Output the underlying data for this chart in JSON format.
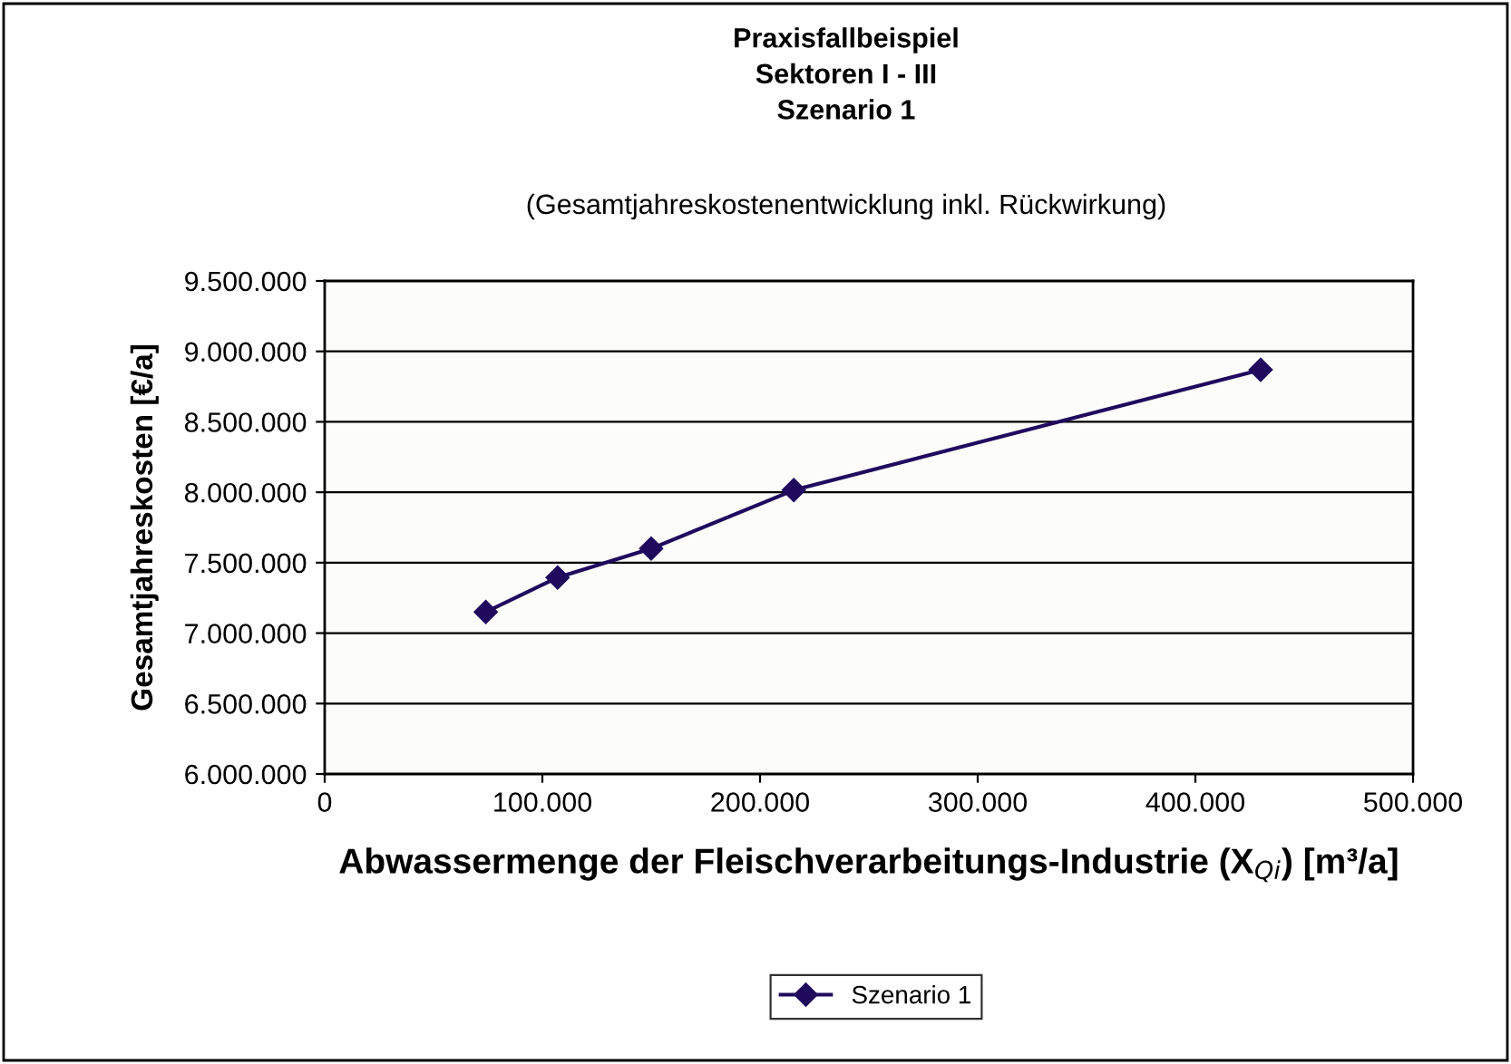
{
  "chart_data": {
    "type": "line",
    "title": "Praxisfallbeispiel\nSektoren I - III\nSzenario 1",
    "subtitle": "(Gesamtjahreskostenentwicklung inkl. Rückwirkung)",
    "xlabel": "Abwassermenge der Fleischverarbeitungs-Industrie (X$_{Qi}$) [m³/a]",
    "ylabel": "Gesamtjahreskosten [€/a]",
    "x": [
      74000,
      107000,
      150000,
      215500,
      430000
    ],
    "series": [
      {
        "name": "Szenario 1",
        "color": "#1f0a5e",
        "values": [
          7150000,
          7395000,
          7600000,
          8015000,
          8870000
        ]
      }
    ],
    "xlim": [
      0,
      500000
    ],
    "xticks": [
      {
        "value": 0,
        "label": "0"
      },
      {
        "value": 100000,
        "label": "100.000"
      },
      {
        "value": 200000,
        "label": "200.000"
      },
      {
        "value": 300000,
        "label": "300.000"
      },
      {
        "value": 400000,
        "label": "400.000"
      },
      {
        "value": 500000,
        "label": "500.000"
      }
    ],
    "ylim": [
      6000000,
      9500000
    ],
    "yticks": [
      {
        "value": 6000000,
        "label": "6.000.000"
      },
      {
        "value": 6500000,
        "label": "6.500.000"
      },
      {
        "value": 7000000,
        "label": "7.000.000"
      },
      {
        "value": 7500000,
        "label": "7.500.000"
      },
      {
        "value": 8000000,
        "label": "8.000.000"
      },
      {
        "value": 8500000,
        "label": "8.500.000"
      },
      {
        "value": 9000000,
        "label": "9.000.000"
      },
      {
        "value": 9500000,
        "label": "9.500.000"
      }
    ],
    "grid": "y",
    "legend": "bottom",
    "marker": "diamond",
    "line_style": "solid"
  }
}
